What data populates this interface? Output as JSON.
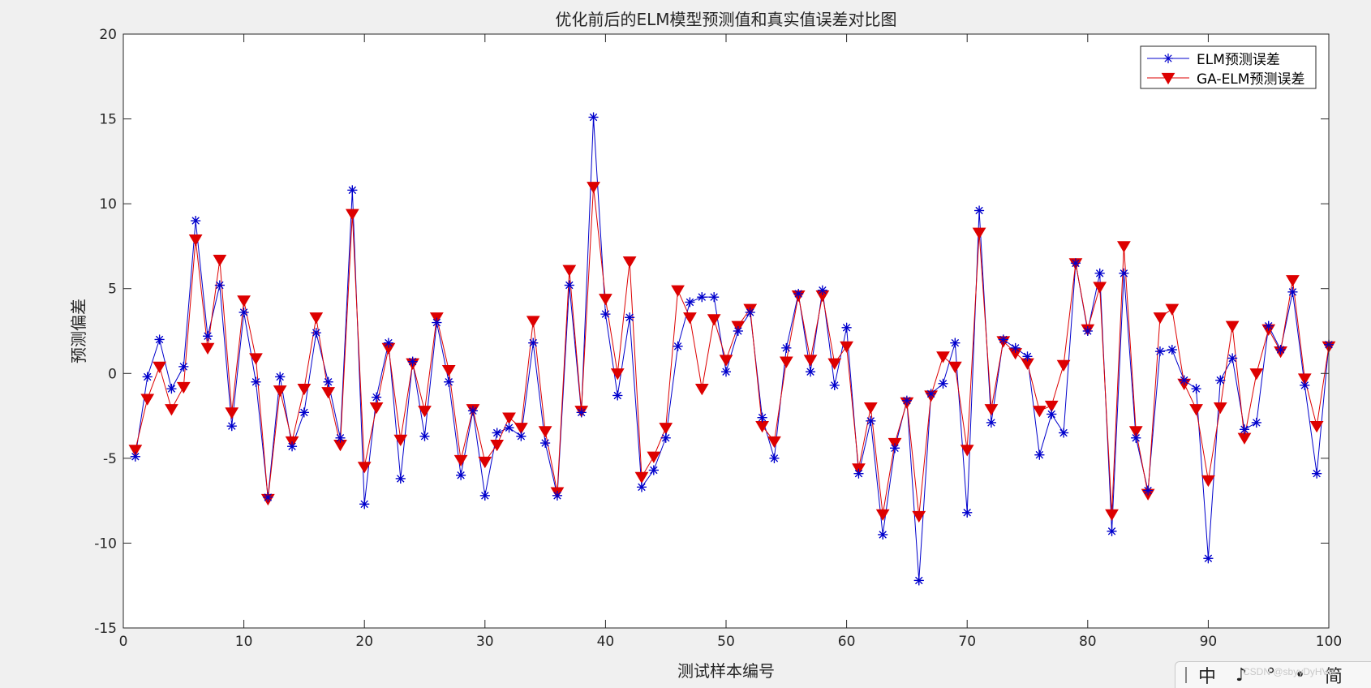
{
  "chart_data": {
    "type": "line",
    "title": "优化前后的ELM模型预测值和真实值误差对比图",
    "xlabel": "测试样本编号",
    "ylabel": "预测偏差",
    "xlim": [
      0,
      100
    ],
    "ylim": [
      -15,
      20
    ],
    "xticks": [
      0,
      10,
      20,
      30,
      40,
      50,
      60,
      70,
      80,
      90,
      100
    ],
    "yticks": [
      -15,
      -10,
      -5,
      0,
      5,
      10,
      15,
      20
    ],
    "grid": false,
    "legend_position": "top-right",
    "x": [
      1,
      2,
      3,
      4,
      5,
      6,
      7,
      8,
      9,
      10,
      11,
      12,
      13,
      14,
      15,
      16,
      17,
      18,
      19,
      20,
      21,
      22,
      23,
      24,
      25,
      26,
      27,
      28,
      29,
      30,
      31,
      32,
      33,
      34,
      35,
      36,
      37,
      38,
      39,
      40,
      41,
      42,
      43,
      44,
      45,
      46,
      47,
      48,
      49,
      50,
      51,
      52,
      53,
      54,
      55,
      56,
      57,
      58,
      59,
      60,
      61,
      62,
      63,
      64,
      65,
      66,
      67,
      68,
      69,
      70,
      71,
      72,
      73,
      74,
      75,
      76,
      77,
      78,
      79,
      80,
      81,
      82,
      83,
      84,
      85,
      86,
      87,
      88,
      89,
      90,
      91,
      92,
      93,
      94,
      95,
      96,
      97,
      98,
      99,
      100
    ],
    "series": [
      {
        "name": "ELM预测误差",
        "color": "#0000cc",
        "marker": "asterisk",
        "values": [
          -4.9,
          -0.2,
          2.0,
          -0.9,
          0.4,
          9.0,
          2.2,
          5.2,
          -3.1,
          3.6,
          -0.5,
          -7.3,
          -0.2,
          -4.3,
          -2.3,
          2.4,
          -0.5,
          -3.8,
          10.8,
          -7.7,
          -1.4,
          1.8,
          -6.2,
          0.7,
          -3.7,
          3.0,
          -0.5,
          -6.0,
          -2.2,
          -7.2,
          -3.5,
          -3.2,
          -3.7,
          1.8,
          -4.1,
          -7.2,
          5.2,
          -2.3,
          15.1,
          3.5,
          -1.3,
          3.3,
          -6.7,
          -5.7,
          -3.8,
          1.6,
          4.2,
          4.5,
          4.5,
          0.1,
          2.5,
          3.6,
          -2.6,
          -5.0,
          1.5,
          4.7,
          0.1,
          4.9,
          -0.7,
          2.7,
          -5.9,
          -2.8,
          -9.5,
          -4.4,
          -1.6,
          -12.2,
          -1.2,
          -0.6,
          1.8,
          -8.2,
          9.6,
          -2.9,
          2.0,
          1.5,
          1.0,
          -4.8,
          -2.4,
          -3.5,
          6.5,
          2.5,
          5.9,
          -9.3,
          5.9,
          -3.8,
          -6.9,
          1.3,
          1.4,
          -0.4,
          -0.9,
          -10.9,
          -0.4,
          0.9,
          -3.3,
          -2.9,
          2.8,
          1.4,
          4.8,
          -0.7,
          -5.9,
          1.7
        ]
      },
      {
        "name": "GA-ELM预测误差",
        "color": "#dd0000",
        "marker": "triangle-down",
        "values": [
          -4.5,
          -1.5,
          0.4,
          -2.1,
          -0.8,
          7.9,
          1.5,
          6.7,
          -2.3,
          4.3,
          0.9,
          -7.4,
          -1.0,
          -4.0,
          -0.9,
          3.3,
          -1.1,
          -4.2,
          9.4,
          -5.5,
          -2.0,
          1.5,
          -3.9,
          0.6,
          -2.2,
          3.3,
          0.2,
          -5.1,
          -2.1,
          -5.2,
          -4.2,
          -2.6,
          -3.2,
          3.1,
          -3.4,
          -7.0,
          6.1,
          -2.2,
          11.0,
          4.4,
          0.0,
          6.6,
          -6.1,
          -4.9,
          -3.2,
          4.9,
          3.3,
          -0.9,
          3.2,
          0.8,
          2.8,
          3.8,
          -3.1,
          -4.0,
          0.7,
          4.6,
          0.8,
          4.6,
          0.6,
          1.6,
          -5.6,
          -2.0,
          -8.3,
          -4.1,
          -1.7,
          -8.4,
          -1.3,
          1.0,
          0.4,
          -4.5,
          8.3,
          -2.1,
          1.9,
          1.2,
          0.6,
          -2.2,
          -1.9,
          0.5,
          6.5,
          2.6,
          5.1,
          -8.3,
          7.5,
          -3.4,
          -7.1,
          3.3,
          3.8,
          -0.6,
          -2.1,
          -6.3,
          -2.0,
          2.8,
          -3.8,
          0.0,
          2.6,
          1.3,
          5.5,
          -0.3,
          -3.1,
          1.6
        ]
      }
    ]
  },
  "ime_bar": {
    "items": [
      "中",
      "♪",
      "°",
      "•",
      "简"
    ]
  },
  "watermark": "CSDN @sbyyDyHVbi"
}
